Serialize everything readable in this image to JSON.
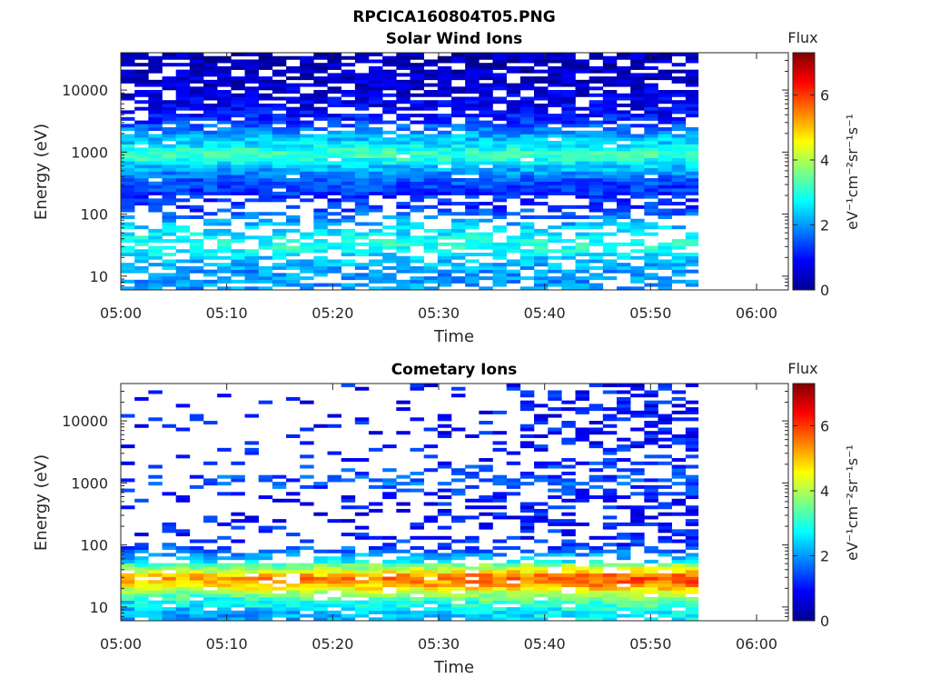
{
  "figure_title": "RPCICA160804T05.PNG",
  "colorbar": {
    "title": "Flux",
    "unit_label": "eV⁻¹cm⁻²sr⁻¹s⁻¹",
    "range": [
      0,
      7.3
    ],
    "ticks": [
      "0",
      "2",
      "4",
      "6"
    ],
    "colormap": "jet"
  },
  "chart_data": [
    {
      "type": "heatmap",
      "title": "Solar Wind Ions",
      "xlabel": "Time",
      "ylabel": "Energy (eV)",
      "x_ticks": [
        "05:00",
        "05:10",
        "05:20",
        "05:30",
        "05:40",
        "05:50",
        "06:00"
      ],
      "y_ticks": [
        "10",
        "100",
        "1000",
        "10000"
      ],
      "x_range_min": [
        0,
        63
      ],
      "data_span_min": [
        0,
        54.5
      ],
      "y_range_eV": [
        6,
        40000
      ],
      "y_scale": "log",
      "z_range": [
        0,
        7.3
      ],
      "representative_profile": {
        "energy_eV": [
          8,
          12,
          20,
          30,
          50,
          80,
          120,
          200,
          350,
          600,
          900,
          1300,
          2000,
          3500,
          6000,
          10000,
          20000,
          35000
        ],
        "flux": [
          2.0,
          2.0,
          2.4,
          3.0,
          2.6,
          2.0,
          1.3,
          1.2,
          1.5,
          2.4,
          3.3,
          2.6,
          2.0,
          1.1,
          0.8,
          0.6,
          0.5,
          0.4
        ]
      }
    },
    {
      "type": "heatmap",
      "title": "Cometary Ions",
      "xlabel": "Time",
      "ylabel": "Energy (eV)",
      "x_ticks": [
        "05:00",
        "05:10",
        "05:20",
        "05:30",
        "05:40",
        "05:50",
        "06:00"
      ],
      "y_ticks": [
        "10",
        "100",
        "1000",
        "10000"
      ],
      "x_range_min": [
        0,
        63
      ],
      "data_span_min": [
        0,
        54.5
      ],
      "y_range_eV": [
        6,
        40000
      ],
      "y_scale": "log",
      "z_range": [
        0,
        7.3
      ],
      "representative_profile": {
        "energy_eV": [
          8,
          12,
          16,
          22,
          30,
          40,
          60,
          100,
          200,
          500,
          1000,
          2000,
          5000,
          12000,
          30000
        ],
        "flux": [
          2.0,
          2.6,
          3.3,
          4.6,
          5.2,
          3.8,
          2.3,
          1.3,
          1.0,
          1.0,
          1.6,
          1.2,
          1.0,
          1.0,
          1.0
        ]
      }
    }
  ]
}
